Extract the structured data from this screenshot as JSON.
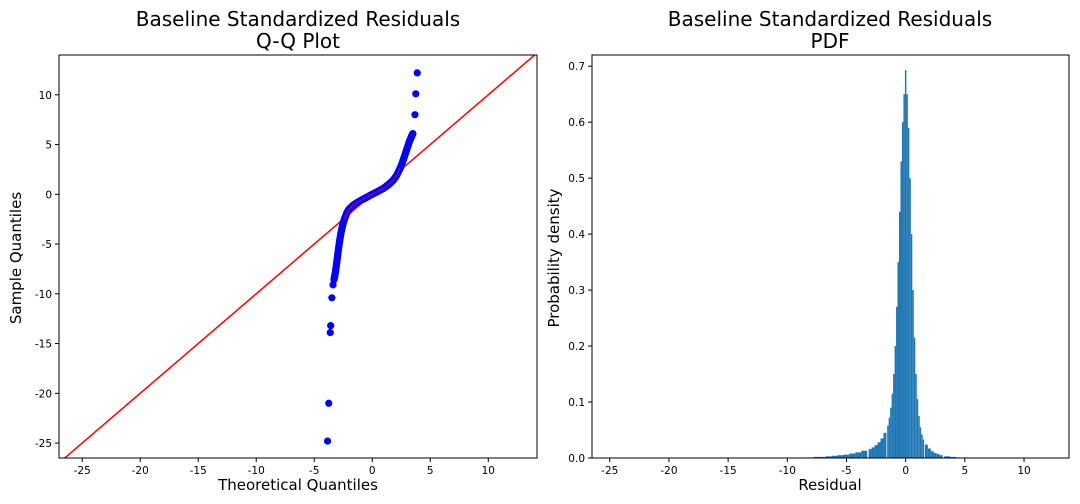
{
  "chart_data": [
    {
      "type": "scatter",
      "title": [
        "Baseline Standardized Residuals",
        "Q-Q Plot"
      ],
      "xlabel": "Theoretical Quantiles",
      "ylabel": "Sample Quantiles",
      "xlim": [
        -27,
        14.2
      ],
      "ylim": [
        -26.5,
        14
      ],
      "xticks": [
        -25,
        -20,
        -15,
        -10,
        -5,
        0,
        5,
        10
      ],
      "yticks": [
        -25,
        -20,
        -15,
        -10,
        -5,
        0,
        5,
        10
      ],
      "grid": false,
      "marker_color": "#0000ff",
      "reference_line": {
        "slope": 1,
        "intercept": 0,
        "color": "#ff0000"
      },
      "points": [
        [
          -3.85,
          -24.8
        ],
        [
          -3.75,
          -21.0
        ],
        [
          -3.62,
          -13.9
        ],
        [
          -3.58,
          -13.2
        ],
        [
          -3.48,
          -10.4
        ],
        [
          -3.38,
          -9.1
        ],
        [
          -3.3,
          -8.6
        ],
        [
          -3.2,
          -8.0
        ],
        [
          -3.1,
          -7.2
        ],
        [
          -3.0,
          -6.3
        ],
        [
          -2.9,
          -5.4
        ],
        [
          -2.8,
          -4.6
        ],
        [
          -2.7,
          -3.9
        ],
        [
          -2.55,
          -3.1
        ],
        [
          -2.4,
          -2.5
        ],
        [
          -2.2,
          -1.9
        ],
        [
          -2.0,
          -1.5
        ],
        [
          -1.7,
          -1.15
        ],
        [
          -1.4,
          -0.9
        ],
        [
          -1.0,
          -0.62
        ],
        [
          -0.6,
          -0.38
        ],
        [
          -0.2,
          -0.12
        ],
        [
          0.2,
          0.12
        ],
        [
          0.6,
          0.36
        ],
        [
          1.0,
          0.62
        ],
        [
          1.4,
          0.95
        ],
        [
          1.8,
          1.4
        ],
        [
          2.1,
          1.9
        ],
        [
          2.4,
          2.6
        ],
        [
          2.6,
          3.2
        ],
        [
          2.8,
          3.9
        ],
        [
          3.0,
          4.6
        ],
        [
          3.2,
          5.3
        ],
        [
          3.38,
          5.8
        ],
        [
          3.5,
          6.1
        ],
        [
          3.68,
          8.0
        ],
        [
          3.75,
          10.1
        ],
        [
          3.88,
          12.2
        ]
      ]
    },
    {
      "type": "bar",
      "title": [
        "Baseline Standardized Residuals",
        "PDF"
      ],
      "xlabel": "Residual",
      "ylabel": "Probability density",
      "xlim": [
        -26.5,
        13.8
      ],
      "ylim": [
        0,
        0.72
      ],
      "xticks": [
        -25,
        -20,
        -15,
        -10,
        -5,
        0,
        5,
        10
      ],
      "yticks": [
        0.0,
        0.1,
        0.2,
        0.3,
        0.4,
        0.5,
        0.6,
        0.7
      ],
      "grid": false,
      "bar_color": "#1f77b4",
      "bins": {
        "centers": [
          -8.5,
          -8.0,
          -7.5,
          -7.0,
          -6.5,
          -6.0,
          -5.5,
          -5.0,
          -4.5,
          -4.0,
          -3.5,
          -3.0,
          -2.75,
          -2.5,
          -2.25,
          -2.0,
          -1.75,
          -1.5,
          -1.375,
          -1.25,
          -1.125,
          -1.0,
          -0.875,
          -0.75,
          -0.625,
          -0.5,
          -0.375,
          -0.25,
          -0.125,
          0.0,
          0.125,
          0.25,
          0.375,
          0.5,
          0.625,
          0.75,
          0.875,
          1.0,
          1.125,
          1.25,
          1.375,
          1.5,
          1.75,
          2.0,
          2.25,
          2.5,
          2.75,
          3.0,
          3.5,
          4.0,
          4.5,
          5.0
        ],
        "widths": [
          0.5,
          0.5,
          0.5,
          0.5,
          0.5,
          0.5,
          0.5,
          0.5,
          0.5,
          0.5,
          0.5,
          0.25,
          0.25,
          0.25,
          0.25,
          0.25,
          0.25,
          0.125,
          0.125,
          0.125,
          0.125,
          0.125,
          0.125,
          0.125,
          0.125,
          0.125,
          0.125,
          0.125,
          0.125,
          0.125,
          0.125,
          0.125,
          0.125,
          0.125,
          0.125,
          0.125,
          0.125,
          0.125,
          0.125,
          0.125,
          0.125,
          0.125,
          0.25,
          0.25,
          0.25,
          0.25,
          0.25,
          0.25,
          0.5,
          0.5,
          0.5,
          0.5
        ],
        "values": [
          0.001,
          0.001,
          0.002,
          0.002,
          0.003,
          0.004,
          0.005,
          0.006,
          0.008,
          0.01,
          0.013,
          0.016,
          0.019,
          0.023,
          0.028,
          0.035,
          0.045,
          0.058,
          0.072,
          0.09,
          0.115,
          0.15,
          0.2,
          0.27,
          0.35,
          0.44,
          0.53,
          0.6,
          0.65,
          0.693,
          0.65,
          0.59,
          0.5,
          0.4,
          0.3,
          0.215,
          0.15,
          0.105,
          0.075,
          0.055,
          0.042,
          0.033,
          0.024,
          0.017,
          0.012,
          0.009,
          0.007,
          0.005,
          0.003,
          0.002,
          0.001,
          0.001
        ]
      }
    }
  ]
}
